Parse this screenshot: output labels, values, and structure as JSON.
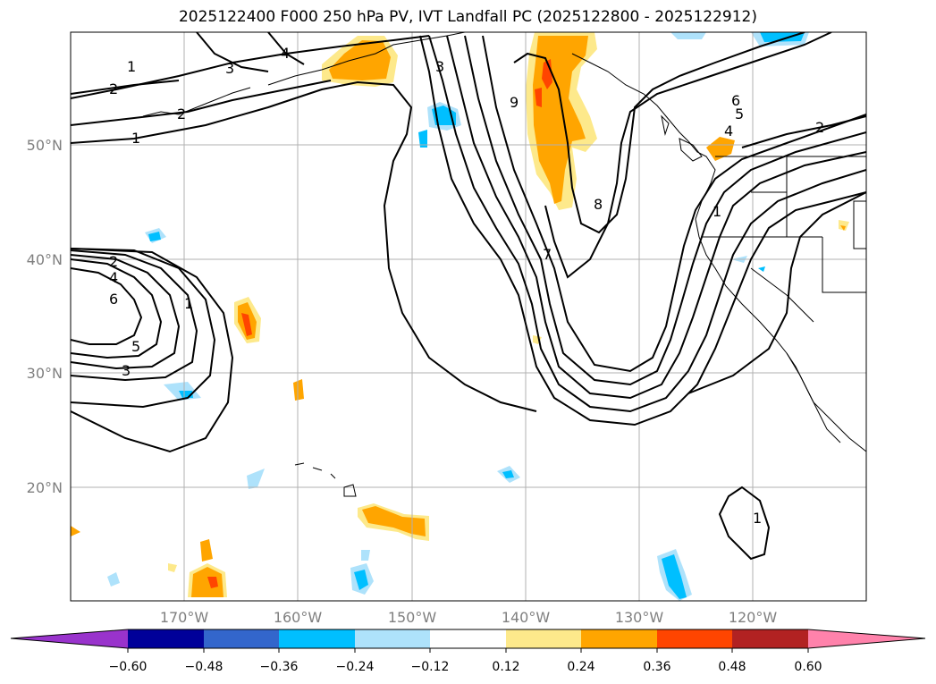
{
  "title": "2025122400 F000 250 hPa PV, IVT Landfall PC (2025122800 - 2025122912)",
  "map": {
    "lat_labels": [
      "50°N",
      "40°N",
      "30°N",
      "20°N"
    ],
    "lon_labels": [
      "170°W",
      "160°W",
      "150°W",
      "140°W",
      "130°W",
      "120°W"
    ],
    "lon_range": [
      -180,
      -110
    ],
    "lat_range": [
      10,
      60
    ],
    "contour_levels_labeled": [
      "1",
      "2",
      "3",
      "4",
      "5",
      "6",
      "7",
      "8",
      "9"
    ]
  },
  "colorbar": {
    "ticks": [
      "−0.60",
      "−0.48",
      "−0.36",
      "−0.24",
      "−0.12",
      "0.12",
      "0.24",
      "0.36",
      "0.48",
      "0.60"
    ],
    "colors": [
      "#9933cc",
      "#000099",
      "#3366cc",
      "#00bfff",
      "#aee2fb",
      "#ffffff",
      "#fde98b",
      "#ffa500",
      "#ff4500",
      "#b22222",
      "#ff82ab"
    ]
  },
  "colors": {
    "positive_1": "#fde98b",
    "positive_2": "#ffa500",
    "positive_3": "#ff4500",
    "negative_1": "#aee2fb",
    "negative_2": "#00bfff",
    "grid": "#b0b0b0"
  }
}
